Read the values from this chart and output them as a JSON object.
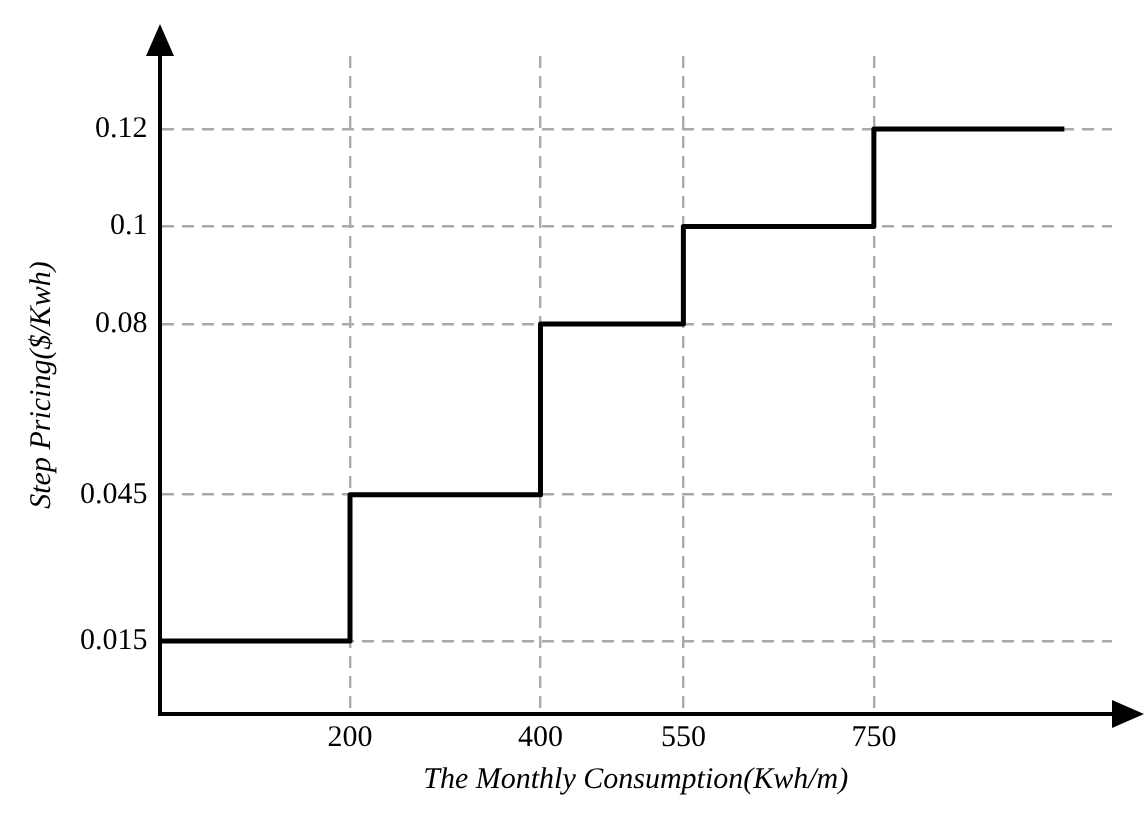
{
  "chart_data": {
    "type": "step",
    "xlabel": "The Monthly Consumption(Kwh/m)",
    "ylabel": "Step Pricing($/Kwh)",
    "x": [
      0,
      200,
      400,
      550,
      750,
      950
    ],
    "values": [
      0.015,
      0.045,
      0.08,
      0.1,
      0.12,
      0.12
    ],
    "color": "#000000",
    "xlim": [
      0,
      1000
    ],
    "xticks": [
      200,
      400,
      550,
      750
    ],
    "ylim": [
      0,
      0.135
    ],
    "yticks": [
      0.015,
      0.045,
      0.08,
      0.1,
      0.12
    ],
    "grid": true,
    "legend": false,
    "marker": "none",
    "line_style": "solid"
  }
}
